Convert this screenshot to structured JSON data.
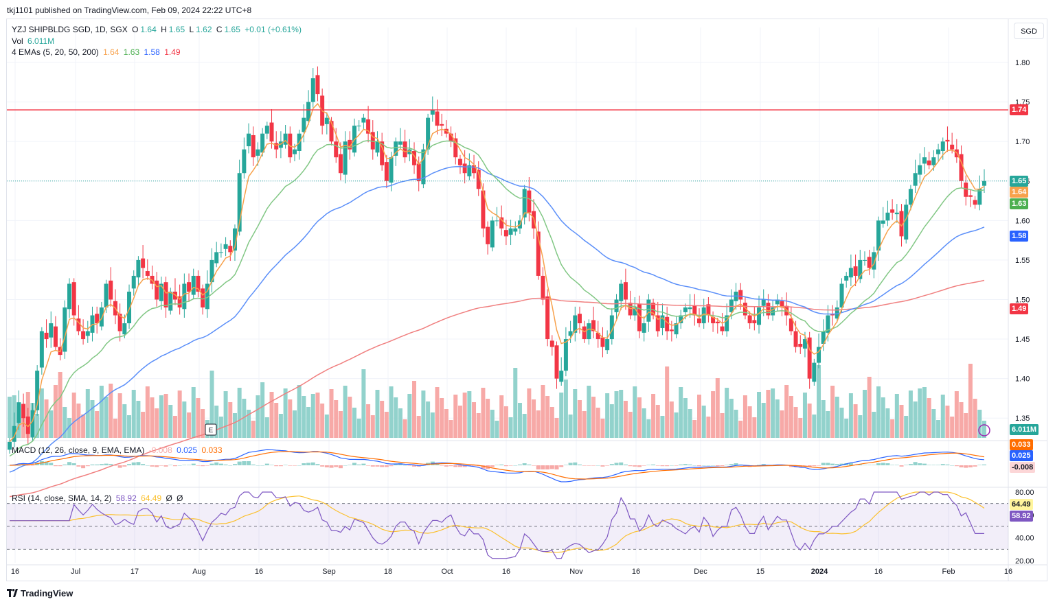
{
  "publish_line": "tkj1101 published on TradingView.com, Feb 09, 2024 22:22 UTC+8",
  "brand": "TradingView",
  "currency_button": "SGD",
  "earnings_marker": "E",
  "legend": {
    "symbol": "YZJ SHIPBLDG SGD, 1D, SGX",
    "open_label": "O",
    "open": "1.64",
    "high_label": "H",
    "high": "1.65",
    "low_label": "L",
    "low": "1.62",
    "close_label": "C",
    "close": "1.65",
    "change": "+0.01 (+0.61%)",
    "vol_label": "Vol",
    "vol": "6.011M",
    "ema_label": "4 EMAs (5, 20, 50, 200)",
    "ema_values": [
      "1.64",
      "1.63",
      "1.58",
      "1.49"
    ],
    "macd_label": "MACD (12, 26, close, 9, EMA, EMA)",
    "macd_values": [
      "-0.008",
      "0.025",
      "0.033"
    ],
    "rsi_label": "RSI (14, close, SMA, 14, 2)",
    "rsi_values": [
      "58.92",
      "64.49",
      "Ø",
      "Ø"
    ]
  },
  "colors": {
    "up": "#26a69a",
    "down": "#f23645",
    "vol_up": "#92d2cc",
    "vol_down": "#f7a9a7",
    "ema5": "#f7a14b",
    "ema20": "#81c784",
    "ema50": "#5b8ff9",
    "ema200": "#f07f7f",
    "resistance": "#f23645",
    "macd": "#2962ff",
    "signal": "#ff6d00",
    "rsi": "#7e57c2",
    "rsi_ma": "#fbc02d"
  },
  "chart_data": {
    "type": "candlestick",
    "price_axis": {
      "ticks": [
        "1.80",
        "1.75",
        "1.70",
        "1.65",
        "1.60",
        "1.55",
        "1.50",
        "1.45",
        "1.40",
        "1.35"
      ],
      "range": [
        1.325,
        1.82
      ]
    },
    "time_axis": [
      "16",
      "Jul",
      "17",
      "Aug",
      "16",
      "Sep",
      "18",
      "Oct",
      "16",
      "Nov",
      "16",
      "Dec",
      "15",
      "2024",
      "16",
      "Feb",
      "16"
    ],
    "resistance_level": 1.74,
    "last_price": 1.65,
    "price_labels": [
      {
        "value": "1.74",
        "price": 1.74,
        "color": "#f23645"
      },
      {
        "value": "1.65",
        "price": 1.65,
        "color": "#26a69a"
      },
      {
        "value": "1.64",
        "price": 1.636,
        "color": "#f7a14b"
      },
      {
        "value": "1.63",
        "price": 1.621,
        "color": "#4caf50"
      },
      {
        "value": "1.58",
        "price": 1.58,
        "color": "#2962ff"
      },
      {
        "value": "1.49",
        "price": 1.488,
        "color": "#f23645"
      },
      {
        "value": "6.011M",
        "price": 1.337,
        "color": "#26a69a"
      }
    ],
    "closes": [
      1.32,
      1.34,
      1.37,
      1.35,
      1.33,
      1.36,
      1.41,
      1.46,
      1.45,
      1.47,
      1.44,
      1.43,
      1.49,
      1.52,
      1.48,
      1.46,
      1.45,
      1.46,
      1.48,
      1.47,
      1.49,
      1.52,
      1.5,
      1.48,
      1.46,
      1.47,
      1.51,
      1.53,
      1.55,
      1.54,
      1.53,
      1.52,
      1.5,
      1.52,
      1.49,
      1.51,
      1.5,
      1.49,
      1.52,
      1.51,
      1.53,
      1.51,
      1.49,
      1.52,
      1.55,
      1.56,
      1.56,
      1.57,
      1.56,
      1.59,
      1.66,
      1.69,
      1.71,
      1.68,
      1.69,
      1.71,
      1.72,
      1.7,
      1.69,
      1.7,
      1.71,
      1.68,
      1.69,
      1.71,
      1.73,
      1.75,
      1.78,
      1.76,
      1.72,
      1.73,
      1.7,
      1.68,
      1.66,
      1.7,
      1.69,
      1.72,
      1.72,
      1.73,
      1.71,
      1.69,
      1.7,
      1.67,
      1.65,
      1.68,
      1.7,
      1.7,
      1.68,
      1.69,
      1.67,
      1.65,
      1.69,
      1.73,
      1.74,
      1.72,
      1.72,
      1.71,
      1.7,
      1.68,
      1.67,
      1.66,
      1.67,
      1.66,
      1.64,
      1.59,
      1.57,
      1.6,
      1.6,
      1.59,
      1.58,
      1.59,
      1.59,
      1.6,
      1.64,
      1.61,
      1.59,
      1.53,
      1.5,
      1.45,
      1.44,
      1.4,
      1.41,
      1.45,
      1.46,
      1.48,
      1.47,
      1.45,
      1.47,
      1.46,
      1.45,
      1.44,
      1.45,
      1.48,
      1.5,
      1.52,
      1.5,
      1.48,
      1.49,
      1.46,
      1.47,
      1.5,
      1.48,
      1.46,
      1.48,
      1.46,
      1.46,
      1.47,
      1.48,
      1.49,
      1.49,
      1.48,
      1.47,
      1.49,
      1.48,
      1.47,
      1.47,
      1.46,
      1.48,
      1.5,
      1.51,
      1.5,
      1.48,
      1.47,
      1.47,
      1.49,
      1.5,
      1.48,
      1.49,
      1.5,
      1.49,
      1.48,
      1.46,
      1.44,
      1.44,
      1.45,
      1.4,
      1.42,
      1.44,
      1.46,
      1.48,
      1.48,
      1.49,
      1.52,
      1.53,
      1.54,
      1.53,
      1.55,
      1.55,
      1.54,
      1.56,
      1.6,
      1.6,
      1.61,
      1.61,
      1.61,
      1.58,
      1.62,
      1.64,
      1.66,
      1.67,
      1.68,
      1.67,
      1.68,
      1.69,
      1.7,
      1.7,
      1.69,
      1.68,
      1.65,
      1.63,
      1.63,
      1.62,
      1.64,
      1.65
    ],
    "closes_note": "daily closes in SGD, estimated from candle bodies",
    "ema_5_last": 1.64,
    "ema_20_last": 1.63,
    "ema_50_last": 1.58,
    "ema_200_last": 1.49,
    "volume_last": "6.011M",
    "macd": {
      "ticks": [
        "0.033",
        "0.025",
        "-0.008"
      ],
      "histogram_last": -0.008,
      "macd_last": 0.025,
      "signal_last": 0.033
    },
    "rsi": {
      "ticks": [
        "80.00",
        "60.00",
        "40.00",
        "20.00"
      ],
      "rsi_last": 58.92,
      "ma_last": 64.49,
      "upper_band": 70,
      "middle_band": 50,
      "lower_band": 30
    }
  }
}
